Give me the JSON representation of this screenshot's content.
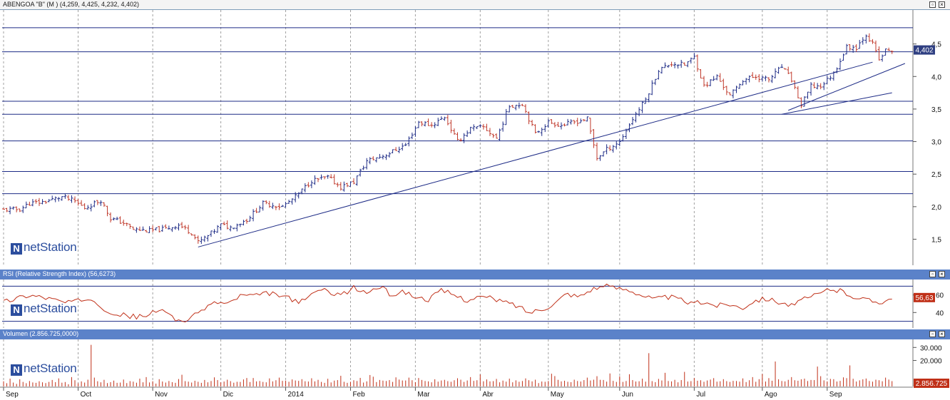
{
  "panels": {
    "price": {
      "title": "ABENGOA \"B\" (M ) (4,259, 4,425, 4,232, 4,402)",
      "last_label": "4,402",
      "last_value": 4.402
    },
    "rsi": {
      "title": "RSI (Relative Strength Index) (56,6273)",
      "last_label": "56,63",
      "last_value": 56.63
    },
    "volume": {
      "title": "Volumen (2.856.725,0000)",
      "last_label": "2.856.725",
      "last_value": 2856725
    }
  },
  "logo_text": "netStation",
  "logo_mark": "N",
  "window_buttons": {
    "restore": "▫",
    "close": "×"
  },
  "colors": {
    "accent": "#5b82c9",
    "up": "#1d2b86",
    "down": "#c0392b",
    "grid": "#a0a0a0",
    "line": "#1d2b86",
    "rsi_line": "#c03018",
    "volume_bar": "#c03018"
  },
  "chart_data": [
    {
      "type": "ohlc",
      "title": "ABENGOA \"B\" (M ) (4,259, 4,425, 4,232, 4,402)",
      "x_axis_labels": [
        "Sep",
        "Oct",
        "Nov",
        "Dic",
        "2014",
        "Feb",
        "Mar",
        "Abr",
        "May",
        "Jun",
        "Jul",
        "Ago",
        "Sep"
      ],
      "x_axis_indices": [
        0,
        23,
        46,
        67,
        87,
        107,
        127,
        147,
        168,
        190,
        213,
        234,
        254
      ],
      "y_ticks": [
        "1,5",
        "2,0",
        "2,5",
        "3,0",
        "3,5",
        "4,0",
        "4,5"
      ],
      "y_tick_values": [
        1.5,
        2.0,
        2.5,
        3.0,
        3.5,
        4.0,
        4.5
      ],
      "ylim": [
        1.1,
        5.0
      ],
      "horizontal_lines": [
        4.75,
        4.38,
        3.62,
        3.42,
        3.01,
        2.54,
        2.2
      ],
      "trendlines": [
        {
          "from": [
            60,
            1.38
          ],
          "to": [
            268,
            4.22
          ]
        },
        {
          "from": [
            240,
            3.42
          ],
          "to": [
            274,
            3.75
          ]
        },
        {
          "from": [
            242,
            3.48
          ],
          "to": [
            278,
            4.2
          ]
        }
      ],
      "close_series": [
        {
          "i": 0,
          "v": 1.95
        },
        {
          "i": 5,
          "v": 1.96
        },
        {
          "i": 8,
          "v": 2.05
        },
        {
          "i": 12,
          "v": 2.07
        },
        {
          "i": 18,
          "v": 2.15
        },
        {
          "i": 22,
          "v": 2.08
        },
        {
          "i": 25,
          "v": 1.98
        },
        {
          "i": 30,
          "v": 2.1
        },
        {
          "i": 33,
          "v": 1.82
        },
        {
          "i": 37,
          "v": 1.75
        },
        {
          "i": 40,
          "v": 1.65
        },
        {
          "i": 45,
          "v": 1.63
        },
        {
          "i": 50,
          "v": 1.66
        },
        {
          "i": 54,
          "v": 1.72
        },
        {
          "i": 58,
          "v": 1.6
        },
        {
          "i": 60,
          "v": 1.45
        },
        {
          "i": 63,
          "v": 1.55
        },
        {
          "i": 67,
          "v": 1.72
        },
        {
          "i": 70,
          "v": 1.68
        },
        {
          "i": 75,
          "v": 1.8
        },
        {
          "i": 80,
          "v": 2.05
        },
        {
          "i": 86,
          "v": 2.0
        },
        {
          "i": 90,
          "v": 2.15
        },
        {
          "i": 95,
          "v": 2.4
        },
        {
          "i": 100,
          "v": 2.45
        },
        {
          "i": 104,
          "v": 2.3
        },
        {
          "i": 108,
          "v": 2.38
        },
        {
          "i": 112,
          "v": 2.7
        },
        {
          "i": 118,
          "v": 2.8
        },
        {
          "i": 124,
          "v": 2.95
        },
        {
          "i": 128,
          "v": 3.3
        },
        {
          "i": 132,
          "v": 3.25
        },
        {
          "i": 136,
          "v": 3.38
        },
        {
          "i": 140,
          "v": 3.0
        },
        {
          "i": 144,
          "v": 3.2
        },
        {
          "i": 148,
          "v": 3.22
        },
        {
          "i": 152,
          "v": 3.05
        },
        {
          "i": 156,
          "v": 3.55
        },
        {
          "i": 160,
          "v": 3.58
        },
        {
          "i": 164,
          "v": 3.12
        },
        {
          "i": 168,
          "v": 3.3
        },
        {
          "i": 172,
          "v": 3.25
        },
        {
          "i": 176,
          "v": 3.3
        },
        {
          "i": 180,
          "v": 3.35
        },
        {
          "i": 183,
          "v": 2.75
        },
        {
          "i": 186,
          "v": 2.88
        },
        {
          "i": 190,
          "v": 3.0
        },
        {
          "i": 194,
          "v": 3.35
        },
        {
          "i": 198,
          "v": 3.65
        },
        {
          "i": 202,
          "v": 4.1
        },
        {
          "i": 206,
          "v": 4.2
        },
        {
          "i": 210,
          "v": 4.18
        },
        {
          "i": 213,
          "v": 4.3
        },
        {
          "i": 216,
          "v": 3.85
        },
        {
          "i": 220,
          "v": 4.0
        },
        {
          "i": 224,
          "v": 3.7
        },
        {
          "i": 228,
          "v": 3.95
        },
        {
          "i": 232,
          "v": 4.0
        },
        {
          "i": 236,
          "v": 3.95
        },
        {
          "i": 240,
          "v": 4.15
        },
        {
          "i": 243,
          "v": 3.95
        },
        {
          "i": 246,
          "v": 3.55
        },
        {
          "i": 249,
          "v": 3.85
        },
        {
          "i": 252,
          "v": 3.85
        },
        {
          "i": 256,
          "v": 4.05
        },
        {
          "i": 260,
          "v": 4.45
        },
        {
          "i": 263,
          "v": 4.45
        },
        {
          "i": 266,
          "v": 4.65
        },
        {
          "i": 268,
          "v": 4.5
        },
        {
          "i": 270,
          "v": 4.25
        },
        {
          "i": 272,
          "v": 4.4
        },
        {
          "i": 274,
          "v": 4.402
        }
      ]
    },
    {
      "type": "line",
      "title": "RSI (Relative Strength Index) (56,6273)",
      "y_ticks": [
        "40",
        "60"
      ],
      "y_tick_values": [
        40,
        60
      ],
      "ylim": [
        24,
        76
      ],
      "horizontal_lines": [
        70,
        30
      ],
      "series": [
        {
          "values": [
            52,
            56,
            60,
            58,
            55,
            51,
            53,
            57,
            45,
            38,
            36,
            35,
            40,
            42,
            30,
            33,
            45,
            52,
            50,
            60,
            58,
            62,
            60,
            55,
            52,
            66,
            64,
            60,
            68,
            62,
            70,
            60,
            64,
            57,
            55,
            65,
            60,
            54,
            58,
            56,
            52,
            48,
            40,
            44,
            50,
            62,
            58,
            67,
            70,
            68,
            66,
            60,
            55,
            58,
            55,
            50,
            52,
            48,
            50,
            45,
            54,
            56,
            52,
            48,
            55,
            60,
            67,
            64,
            58,
            54,
            52,
            56
          ]
        }
      ]
    },
    {
      "type": "bar",
      "title": "Volumen (2.856.725,0000)",
      "y_ticks": [
        "20.000",
        "30.000"
      ],
      "y_tick_values": [
        20000,
        30000
      ],
      "ylim": [
        0,
        34000
      ],
      "values": [
        4000,
        2500,
        6000,
        3000,
        2000,
        5500,
        3500,
        2500,
        4200,
        3100,
        2800,
        4000,
        3200,
        2600,
        3500,
        5000,
        3300,
        6200,
        2900,
        3400,
        1700,
        7200,
        4800,
        2400,
        3900,
        3000,
        5200,
        32000,
        6800,
        4000,
        3200,
        5100,
        2600,
        3300,
        4500,
        2800,
        3000,
        5300,
        2600,
        4100,
        3700,
        2900,
        6000,
        3200,
        7200,
        3100,
        4000,
        2200,
        5600,
        3800,
        3000,
        4200,
        3300,
        2800,
        5700,
        9000,
        4100,
        3700,
        3000,
        4400,
        3600,
        2800,
        5000,
        3200,
        4200,
        7000,
        4900,
        3200,
        3800,
        5200,
        4100,
        2900,
        3600,
        3500,
        5400,
        6500,
        3400,
        6500,
        3900,
        4200,
        3500,
        3200,
        6200,
        3900,
        4800,
        6800,
        4300,
        4500,
        3600,
        5400,
        4600,
        4300,
        5600,
        4000,
        3800,
        6300,
        3900,
        5100,
        3500,
        2800,
        5900,
        3100,
        4500,
        4900,
        8200,
        3600,
        2800,
        3600,
        4800,
        4200,
        6600,
        3000,
        3900,
        8800,
        7500,
        3400,
        5000,
        4500,
        4200,
        4900,
        3500,
        7000,
        5300,
        4600,
        4600,
        6800,
        4800,
        3300,
        6500,
        5000,
        4200,
        3900,
        3200,
        5500,
        3700,
        4600,
        5100,
        4100,
        3600,
        4800,
        6300,
        5200,
        3500,
        4600,
        7200,
        4300,
        4800,
        9200,
        4000,
        5400,
        3900,
        4100,
        5800,
        3200,
        4500,
        3700,
        6000,
        3200,
        4700,
        3600,
        4200,
        6200,
        4800,
        3900,
        5200,
        2600,
        3800,
        3600,
        4200,
        9800,
        8000,
        5100,
        3900,
        4400,
        3600,
        3300,
        5200,
        4200,
        3800,
        4900,
        6800,
        4600,
        5200,
        7900,
        5100,
        5000,
        3700,
        10000,
        4300,
        3500,
        7800,
        3500,
        4200,
        9400,
        4900,
        3800,
        4000,
        6000,
        3700,
        25600,
        4100,
        3300,
        5800,
        4600,
        10500,
        4200,
        3900,
        5100,
        3200,
        4900,
        11200,
        3800,
        4100,
        6500,
        4400,
        4800,
        3600,
        4600,
        5300,
        6400,
        3700,
        4000,
        5600,
        4100,
        3500,
        4300,
        4200,
        3700,
        6200,
        3400,
        4800,
        7200,
        3600,
        5600,
        9600,
        3800,
        6400,
        4400,
        19200,
        5500,
        4200,
        3900,
        5100,
        7200,
        4800,
        4400,
        5500,
        6000,
        4200,
        5000,
        4900,
        15300,
        7900,
        4700,
        3900,
        5800,
        5600,
        3800,
        4300,
        7000,
        6400,
        16200,
        5900,
        3800,
        4700,
        5500,
        6100,
        4200,
        3700,
        5200,
        4800,
        4000,
        6800,
        5300,
        4100,
        4900,
        7500
      ]
    }
  ]
}
